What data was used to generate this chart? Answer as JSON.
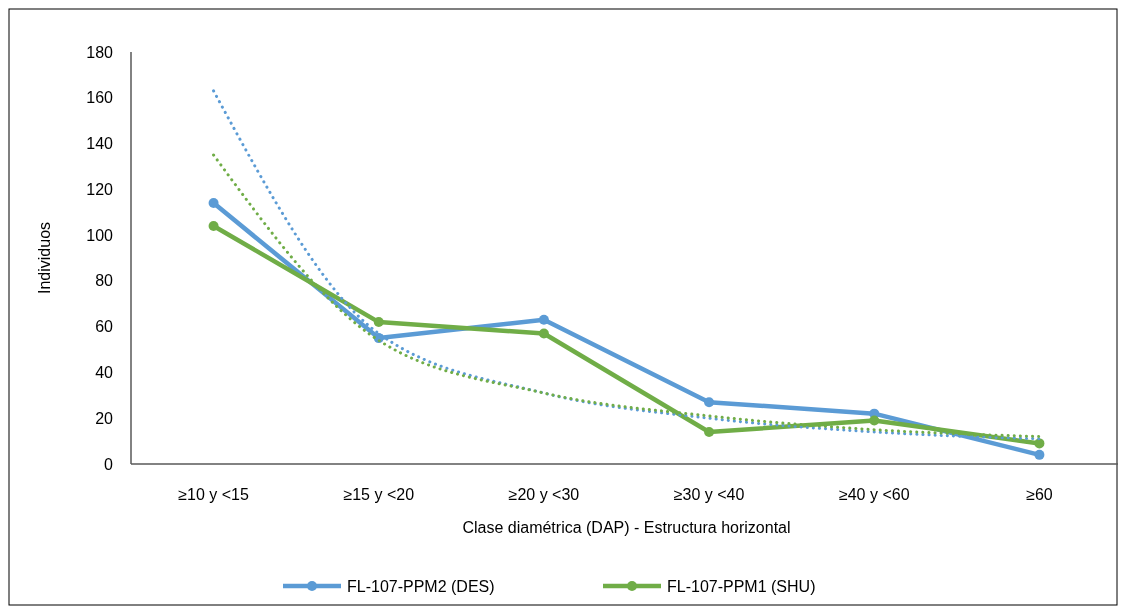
{
  "chart_data": {
    "type": "line",
    "xlabel": "Clase diamétrica (DAP) - Estructura horizontal",
    "ylabel": "Individuos",
    "categories": [
      "≥10 y <15",
      "≥15 y <20",
      "≥20 y <30",
      "≥30 y <40",
      "≥40 y <60",
      "≥60"
    ],
    "series": [
      {
        "name": "FL-107-PPM2 (DES)",
        "color": "#5b9bd5",
        "values": [
          114,
          55,
          63,
          27,
          22,
          4
        ],
        "marker": "circle",
        "line_style": "solid"
      },
      {
        "name": "FL-107-PPM1 (SHU)",
        "color": "#70ad47",
        "values": [
          104,
          62,
          57,
          14,
          19,
          9
        ],
        "marker": "circle",
        "line_style": "solid"
      },
      {
        "color": "#5b9bd5",
        "values": [
          163,
          57,
          31,
          20,
          14,
          11
        ],
        "marker": "none",
        "line_style": "dotted"
      },
      {
        "color": "#70ad47",
        "values": [
          135,
          54,
          31,
          21,
          15,
          12
        ],
        "marker": "none",
        "line_style": "dotted"
      }
    ],
    "ylim": [
      0,
      180
    ],
    "yticks": [
      0,
      20,
      40,
      60,
      80,
      100,
      120,
      140,
      160,
      180
    ],
    "grid": false,
    "legend": "bottom"
  }
}
